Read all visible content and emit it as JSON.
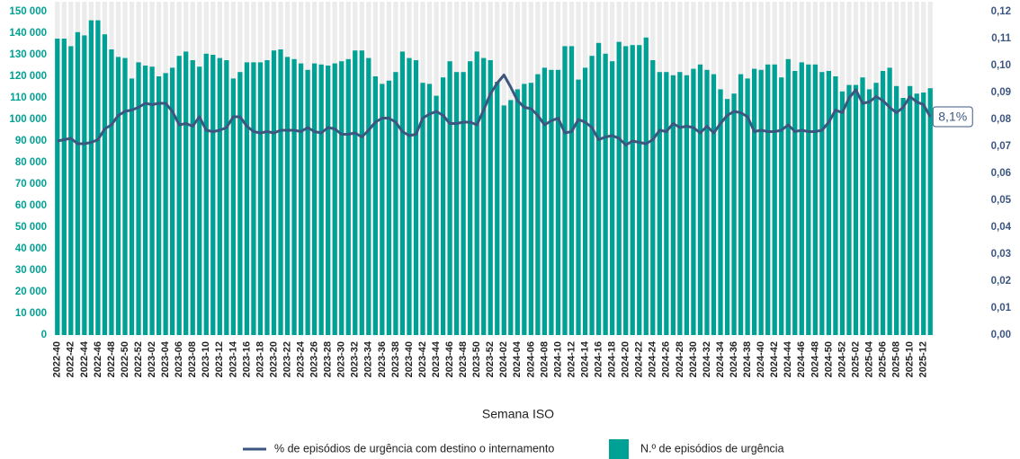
{
  "chart_data": {
    "type": "combo",
    "x_label": "Semana ISO",
    "categories": [
      "2022-40",
      null,
      "2022-42",
      null,
      "2022-44",
      null,
      "2022-46",
      null,
      "2022-48",
      null,
      "2022-50",
      null,
      "2022-52",
      null,
      "2023-02",
      null,
      "2023-04",
      null,
      "2023-06",
      null,
      "2023-08",
      null,
      "2023-10",
      null,
      "2023-12",
      null,
      "2023-14",
      null,
      "2023-16",
      null,
      "2023-18",
      null,
      "2023-20",
      null,
      "2023-22",
      null,
      "2023-24",
      null,
      "2023-26",
      null,
      "2023-28",
      null,
      "2023-30",
      null,
      "2023-32",
      null,
      "2023-34",
      null,
      "2023-36",
      null,
      "2023-38",
      null,
      "2023-40",
      null,
      "2023-42",
      null,
      "2023-44",
      null,
      "2023-46",
      null,
      "2023-48",
      null,
      "2023-50",
      null,
      "2023-52",
      null,
      "2024-02",
      null,
      "2024-04",
      null,
      "2024-06",
      null,
      "2024-08",
      null,
      "2024-10",
      null,
      "2024-12",
      null,
      "2024-14",
      null,
      "2024-16",
      null,
      "2024-18",
      null,
      "2024-20",
      null,
      "2024-22",
      null,
      "2024-24",
      null,
      "2024-26",
      null,
      "2024-28",
      null,
      "2024-30",
      null,
      "2024-32",
      null,
      "2024-34",
      null,
      "2024-36",
      null,
      "2024-38",
      null,
      "2024-40",
      null,
      "2024-42",
      null,
      "2024-44",
      null,
      "2024-46",
      null,
      "2024-48",
      null,
      "2024-50",
      null,
      "2024-52",
      null,
      "2025-02",
      null,
      "2025-04",
      null,
      "2025-06",
      null,
      "2025-08",
      null,
      "2025-10",
      null,
      "2025-12",
      null
    ],
    "series": [
      {
        "name": "% de episódios de urgência com destino o internamento",
        "type": "line",
        "axis": "y2",
        "color": "#3d5680",
        "values": [
          0.072,
          0.0725,
          0.073,
          0.071,
          0.071,
          0.0715,
          0.0725,
          0.0765,
          0.078,
          0.0815,
          0.083,
          0.0835,
          0.0845,
          0.086,
          0.0855,
          0.086,
          0.086,
          0.083,
          0.078,
          0.0785,
          0.0775,
          0.081,
          0.076,
          0.0755,
          0.076,
          0.077,
          0.081,
          0.081,
          0.0775,
          0.0755,
          0.075,
          0.0755,
          0.075,
          0.076,
          0.076,
          0.076,
          0.0755,
          0.077,
          0.0755,
          0.075,
          0.077,
          0.0765,
          0.0745,
          0.0745,
          0.075,
          0.0735,
          0.076,
          0.079,
          0.0805,
          0.0805,
          0.079,
          0.0755,
          0.074,
          0.0745,
          0.0805,
          0.082,
          0.083,
          0.0815,
          0.0785,
          0.0785,
          0.079,
          0.079,
          0.078,
          0.0835,
          0.0895,
          0.0935,
          0.0965,
          0.092,
          0.087,
          0.0845,
          0.084,
          0.0815,
          0.078,
          0.0795,
          0.0805,
          0.075,
          0.0755,
          0.08,
          0.079,
          0.077,
          0.0725,
          0.0735,
          0.074,
          0.073,
          0.0705,
          0.072,
          0.0715,
          0.071,
          0.0725,
          0.076,
          0.0755,
          0.0785,
          0.077,
          0.0775,
          0.077,
          0.075,
          0.0775,
          0.075,
          0.0785,
          0.0815,
          0.083,
          0.0825,
          0.081,
          0.0755,
          0.076,
          0.0755,
          0.0755,
          0.076,
          0.078,
          0.0755,
          0.076,
          0.0755,
          0.0755,
          0.076,
          0.079,
          0.0835,
          0.0825,
          0.088,
          0.091,
          0.086,
          0.0865,
          0.0885,
          0.087,
          0.0845,
          0.0825,
          0.0845,
          0.0885,
          0.0865,
          0.0855,
          0.081
        ],
        "end_label": "8,1%"
      },
      {
        "name": "N.º de episódios de urgência",
        "type": "bar",
        "axis": "y",
        "color": "#00a195",
        "values": [
          137500,
          137500,
          134000,
          140500,
          139000,
          146000,
          146000,
          139500,
          132500,
          129000,
          128500,
          119000,
          126500,
          125000,
          124500,
          120000,
          121500,
          124000,
          129500,
          131500,
          127500,
          124500,
          130500,
          130000,
          128500,
          127500,
          119000,
          122000,
          126500,
          126500,
          126500,
          127500,
          132000,
          132500,
          129000,
          128000,
          126000,
          123000,
          126000,
          125500,
          125000,
          126000,
          127000,
          128000,
          132000,
          132000,
          128500,
          120000,
          116500,
          118000,
          122000,
          131500,
          128500,
          127500,
          117000,
          116500,
          111000,
          119500,
          127000,
          122000,
          122000,
          127000,
          131500,
          128500,
          127500,
          117500,
          106500,
          109000,
          114000,
          116500,
          117000,
          121000,
          124000,
          123000,
          123000,
          134000,
          134000,
          118500,
          124000,
          129500,
          135500,
          130500,
          127000,
          136000,
          134000,
          134500,
          134500,
          138000,
          127500,
          122000,
          122000,
          120500,
          122000,
          120500,
          123500,
          125500,
          123000,
          121000,
          114000,
          109500,
          112000,
          121000,
          119000,
          123500,
          123000,
          125500,
          125500,
          119500,
          128000,
          122500,
          126500,
          125500,
          125500,
          122000,
          122500,
          120000,
          113000,
          116000,
          116000,
          119500,
          114000,
          117000,
          122500,
          124000,
          115500,
          110000,
          115500,
          112000,
          112500,
          114500
        ]
      }
    ],
    "ylim": [
      0,
      150000
    ],
    "yticks": [
      0,
      {
        "value": 10000,
        "label": "10 000"
      },
      {
        "value": 20000,
        "label": "20 000"
      },
      {
        "value": 30000,
        "label": "30 000"
      },
      {
        "value": 40000,
        "label": "40 000"
      },
      {
        "value": 50000,
        "label": "50 000"
      },
      {
        "value": 60000,
        "label": "60 000"
      },
      {
        "value": 70000,
        "label": "70 000"
      },
      {
        "value": 80000,
        "label": "80 000"
      },
      {
        "value": 90000,
        "label": "90 000"
      },
      {
        "value": 100000,
        "label": "100 000"
      },
      {
        "value": 110000,
        "label": "110 000"
      },
      {
        "value": 120000,
        "label": "120 000"
      },
      {
        "value": 130000,
        "label": "130 000"
      },
      {
        "value": 140000,
        "label": "140 000"
      },
      {
        "value": 150000,
        "label": "150 000"
      }
    ],
    "y2lim": [
      0,
      0.12
    ],
    "y2ticks": [
      {
        "value": 0,
        "label": "0,00"
      },
      {
        "value": 0.01,
        "label": "0,01"
      },
      {
        "value": 0.02,
        "label": "0,02"
      },
      {
        "value": 0.03,
        "label": "0,03"
      },
      {
        "value": 0.04,
        "label": "0,04"
      },
      {
        "value": 0.05,
        "label": "0,05"
      },
      {
        "value": 0.06,
        "label": "0,06"
      },
      {
        "value": 0.07,
        "label": "0,07"
      },
      {
        "value": 0.08,
        "label": "0,08"
      },
      {
        "value": 0.09,
        "label": "0,09"
      },
      {
        "value": 0.1,
        "label": "0,10"
      },
      {
        "value": 0.11,
        "label": "0,11"
      },
      {
        "value": 0.12,
        "label": "0,12"
      }
    ],
    "background_stripes": true
  }
}
